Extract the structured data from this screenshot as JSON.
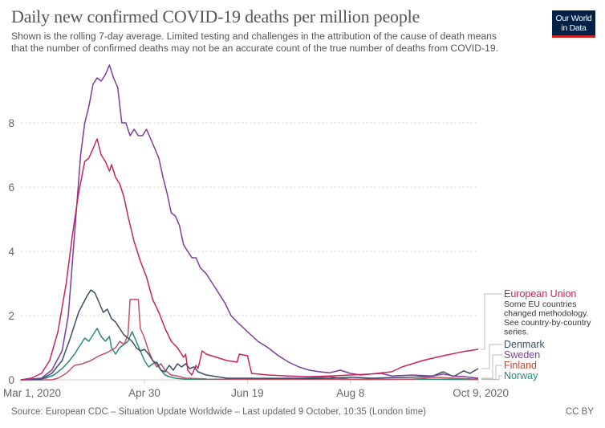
{
  "header": {
    "title": "Daily new confirmed COVID-19 deaths per million people",
    "subtitle_line1": "Shown is the rolling 7-day average. Limited testing and challenges in the attribution of the cause of death means",
    "subtitle_line2": "that the number of confirmed deaths may not be an accurate count of the true number of deaths from COVID-19.",
    "logo_line1": "Our World",
    "logo_line2": "in Data"
  },
  "footer": {
    "source": "Source: European CDC – Situation Update Worldwide – Last updated 9 October, 10:35 (London time)",
    "license": "CC BY"
  },
  "chart_data": {
    "type": "line",
    "title": "Daily new confirmed COVID-19 deaths per million people",
    "xlabel": "",
    "ylabel": "",
    "x_unit": "days since Mar 1, 2020",
    "xlim": [
      0,
      222
    ],
    "ylim": [
      0,
      10
    ],
    "x_ticks": [
      {
        "day": 0,
        "label": "Mar 1, 2020"
      },
      {
        "day": 60,
        "label": "Apr 30"
      },
      {
        "day": 110,
        "label": "Jun 19"
      },
      {
        "day": 160,
        "label": "Aug 8"
      },
      {
        "day": 222,
        "label": "Oct 9, 2020"
      }
    ],
    "y_ticks": [
      0,
      2,
      4,
      6,
      8
    ],
    "grid": true,
    "legend_placement": "right (line-end labels)",
    "series": [
      {
        "name": "European Union",
        "color": "#c9225f",
        "note": [
          "Some EU countries",
          "changed methodology.",
          "See country-by-country",
          "series."
        ],
        "points": [
          [
            0,
            0
          ],
          [
            5,
            0.05
          ],
          [
            10,
            0.2
          ],
          [
            14,
            0.6
          ],
          [
            18,
            1.5
          ],
          [
            22,
            3.0
          ],
          [
            25,
            4.5
          ],
          [
            28,
            5.8
          ],
          [
            31,
            6.8
          ],
          [
            33,
            6.9
          ],
          [
            35,
            7.2
          ],
          [
            37,
            7.5
          ],
          [
            39,
            7.0
          ],
          [
            41,
            6.8
          ],
          [
            43,
            6.5
          ],
          [
            44,
            6.7
          ],
          [
            46,
            6.3
          ],
          [
            48,
            6.1
          ],
          [
            50,
            5.7
          ],
          [
            52,
            5.1
          ],
          [
            55,
            4.3
          ],
          [
            58,
            3.7
          ],
          [
            61,
            3.2
          ],
          [
            64,
            2.5
          ],
          [
            67,
            2.1
          ],
          [
            70,
            1.6
          ],
          [
            73,
            1.2
          ],
          [
            76,
            1.0
          ],
          [
            79,
            0.7
          ],
          [
            80,
            0.8
          ],
          [
            81,
            0.3
          ],
          [
            83,
            0.15
          ],
          [
            85,
            0.45
          ],
          [
            86,
            0.35
          ],
          [
            88,
            0.9
          ],
          [
            90,
            0.8
          ],
          [
            95,
            0.7
          ],
          [
            100,
            0.6
          ],
          [
            105,
            0.55
          ],
          [
            106,
            0.8
          ],
          [
            110,
            0.75
          ],
          [
            112,
            0.2
          ],
          [
            120,
            0.15
          ],
          [
            130,
            0.12
          ],
          [
            140,
            0.1
          ],
          [
            150,
            0.12
          ],
          [
            160,
            0.15
          ],
          [
            170,
            0.18
          ],
          [
            180,
            0.25
          ],
          [
            185,
            0.4
          ],
          [
            195,
            0.6
          ],
          [
            205,
            0.75
          ],
          [
            215,
            0.88
          ],
          [
            222,
            0.95
          ]
        ]
      },
      {
        "name": "Denmark",
        "color": "#3c4e66",
        "points": [
          [
            0,
            0
          ],
          [
            10,
            0.02
          ],
          [
            15,
            0.2
          ],
          [
            20,
            0.6
          ],
          [
            24,
            1.3
          ],
          [
            28,
            2.1
          ],
          [
            32,
            2.6
          ],
          [
            34,
            2.8
          ],
          [
            36,
            2.7
          ],
          [
            38,
            2.4
          ],
          [
            40,
            2.1
          ],
          [
            42,
            2.2
          ],
          [
            44,
            1.9
          ],
          [
            46,
            1.8
          ],
          [
            48,
            1.6
          ],
          [
            50,
            1.4
          ],
          [
            52,
            1.3
          ],
          [
            54,
            1.2
          ],
          [
            56,
            1.0
          ],
          [
            58,
            0.9
          ],
          [
            60,
            0.95
          ],
          [
            62,
            0.8
          ],
          [
            64,
            0.6
          ],
          [
            66,
            0.5
          ],
          [
            68,
            0.3
          ],
          [
            70,
            0.25
          ],
          [
            72,
            0.45
          ],
          [
            74,
            0.3
          ],
          [
            76,
            0.5
          ],
          [
            78,
            0.4
          ],
          [
            80,
            0.5
          ],
          [
            82,
            0.35
          ],
          [
            84,
            0.4
          ],
          [
            86,
            0.25
          ],
          [
            88,
            0.2
          ],
          [
            90,
            0.15
          ],
          [
            95,
            0.1
          ],
          [
            100,
            0.05
          ],
          [
            110,
            0.05
          ],
          [
            120,
            0.04
          ],
          [
            130,
            0.05
          ],
          [
            140,
            0.04
          ],
          [
            150,
            0.05
          ],
          [
            160,
            0.08
          ],
          [
            170,
            0.05
          ],
          [
            180,
            0.07
          ],
          [
            190,
            0.08
          ],
          [
            200,
            0.12
          ],
          [
            205,
            0.25
          ],
          [
            210,
            0.1
          ],
          [
            215,
            0.28
          ],
          [
            218,
            0.2
          ],
          [
            222,
            0.35
          ]
        ]
      },
      {
        "name": "Sweden",
        "color": "#7d3b9c",
        "points": [
          [
            0,
            0
          ],
          [
            10,
            0.05
          ],
          [
            15,
            0.3
          ],
          [
            20,
            0.9
          ],
          [
            23,
            2.0
          ],
          [
            26,
            4.5
          ],
          [
            29,
            7.0
          ],
          [
            31,
            8.0
          ],
          [
            33,
            8.5
          ],
          [
            35,
            9.2
          ],
          [
            37,
            9.4
          ],
          [
            39,
            9.3
          ],
          [
            41,
            9.5
          ],
          [
            43,
            9.8
          ],
          [
            45,
            9.4
          ],
          [
            47,
            9.1
          ],
          [
            49,
            8.0
          ],
          [
            51,
            8.0
          ],
          [
            53,
            7.6
          ],
          [
            55,
            7.8
          ],
          [
            57,
            7.6
          ],
          [
            59,
            7.6
          ],
          [
            61,
            7.8
          ],
          [
            63,
            7.5
          ],
          [
            65,
            7.2
          ],
          [
            67,
            6.9
          ],
          [
            69,
            6.3
          ],
          [
            71,
            5.8
          ],
          [
            73,
            5.2
          ],
          [
            75,
            5.1
          ],
          [
            77,
            4.8
          ],
          [
            79,
            4.2
          ],
          [
            81,
            4.0
          ],
          [
            83,
            3.8
          ],
          [
            85,
            3.8
          ],
          [
            87,
            3.5
          ],
          [
            90,
            3.3
          ],
          [
            93,
            3.0
          ],
          [
            96,
            2.7
          ],
          [
            99,
            2.4
          ],
          [
            102,
            2.0
          ],
          [
            105,
            1.8
          ],
          [
            110,
            1.5
          ],
          [
            115,
            1.2
          ],
          [
            120,
            1.0
          ],
          [
            125,
            0.75
          ],
          [
            130,
            0.55
          ],
          [
            135,
            0.4
          ],
          [
            140,
            0.3
          ],
          [
            145,
            0.25
          ],
          [
            150,
            0.22
          ],
          [
            155,
            0.3
          ],
          [
            160,
            0.2
          ],
          [
            165,
            0.15
          ],
          [
            170,
            0.18
          ],
          [
            175,
            0.2
          ],
          [
            180,
            0.12
          ],
          [
            190,
            0.15
          ],
          [
            200,
            0.12
          ],
          [
            205,
            0.18
          ],
          [
            210,
            0.12
          ],
          [
            215,
            0.1
          ],
          [
            222,
            0.05
          ]
        ]
      },
      {
        "name": "Finland",
        "color": "#c15065",
        "points": [
          [
            0,
            0
          ],
          [
            15,
            0.0
          ],
          [
            18,
            0.05
          ],
          [
            22,
            0.2
          ],
          [
            26,
            0.45
          ],
          [
            30,
            0.5
          ],
          [
            34,
            0.6
          ],
          [
            38,
            0.75
          ],
          [
            42,
            0.85
          ],
          [
            46,
            1.0
          ],
          [
            48,
            1.2
          ],
          [
            50,
            1.1
          ],
          [
            52,
            1.4
          ],
          [
            53,
            2.5
          ],
          [
            57,
            2.5
          ],
          [
            58,
            1.6
          ],
          [
            60,
            1.3
          ],
          [
            62,
            0.9
          ],
          [
            64,
            0.6
          ],
          [
            66,
            0.4
          ],
          [
            68,
            0.5
          ],
          [
            70,
            0.3
          ],
          [
            73,
            0.15
          ],
          [
            76,
            0.12
          ],
          [
            80,
            0.05
          ],
          [
            90,
            0.03
          ],
          [
            110,
            0.02
          ],
          [
            130,
            0.02
          ],
          [
            150,
            0.02
          ],
          [
            170,
            0.01
          ],
          [
            190,
            0.02
          ],
          [
            200,
            0.08
          ],
          [
            210,
            0.05
          ],
          [
            222,
            0.02
          ]
        ]
      },
      {
        "name": "Norway",
        "color": "#2a8a7e",
        "points": [
          [
            0,
            0
          ],
          [
            12,
            0.05
          ],
          [
            16,
            0.15
          ],
          [
            20,
            0.35
          ],
          [
            23,
            0.55
          ],
          [
            26,
            0.8
          ],
          [
            29,
            1.1
          ],
          [
            31,
            1.3
          ],
          [
            33,
            1.2
          ],
          [
            35,
            1.4
          ],
          [
            37,
            1.6
          ],
          [
            39,
            1.35
          ],
          [
            41,
            1.2
          ],
          [
            43,
            1.35
          ],
          [
            44,
            1.0
          ],
          [
            46,
            0.8
          ],
          [
            48,
            1.0
          ],
          [
            50,
            1.1
          ],
          [
            52,
            1.2
          ],
          [
            54,
            1.5
          ],
          [
            56,
            1.2
          ],
          [
            58,
            0.9
          ],
          [
            60,
            0.6
          ],
          [
            62,
            0.4
          ],
          [
            64,
            0.5
          ],
          [
            66,
            0.55
          ],
          [
            68,
            0.3
          ],
          [
            70,
            0.15
          ],
          [
            72,
            0.1
          ],
          [
            75,
            0.05
          ],
          [
            80,
            0.02
          ],
          [
            100,
            0.02
          ],
          [
            120,
            0.05
          ],
          [
            130,
            0.04
          ],
          [
            140,
            0.06
          ],
          [
            150,
            0.1
          ],
          [
            155,
            0.05
          ],
          [
            160,
            0.02
          ],
          [
            180,
            0.02
          ],
          [
            200,
            0.02
          ],
          [
            222,
            0.01
          ]
        ]
      }
    ]
  }
}
